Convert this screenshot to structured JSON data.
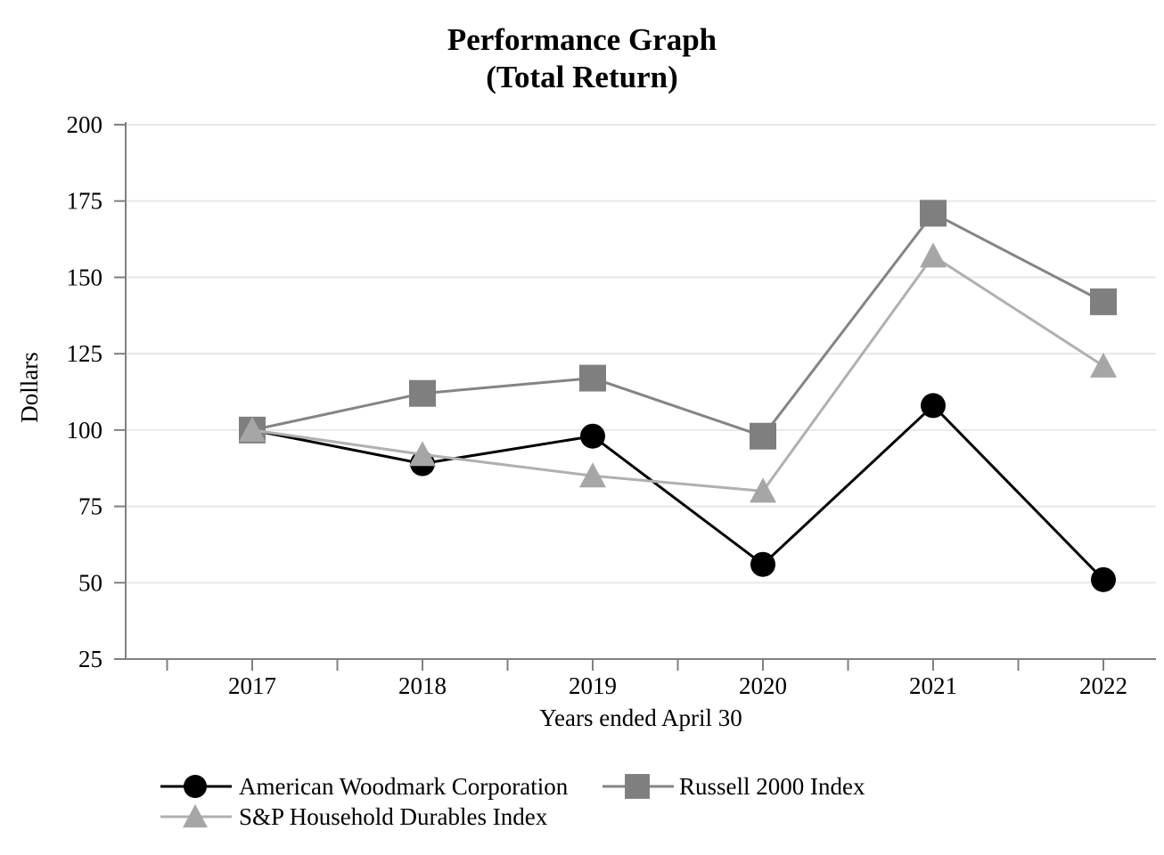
{
  "title": {
    "line1": "Performance Graph",
    "line2": "(Total Return)"
  },
  "chart_data": {
    "type": "line",
    "categories": [
      "2017",
      "2018",
      "2019",
      "2020",
      "2021",
      "2022"
    ],
    "series": [
      {
        "name": "American Woodmark Corporation",
        "marker": "circle",
        "marker_color": "#000000",
        "line_color": "#000000",
        "values": [
          100,
          89,
          98,
          56,
          108,
          51
        ]
      },
      {
        "name": "Russell 2000 Index",
        "marker": "square",
        "marker_color": "#7f7f7f",
        "line_color": "#848484",
        "values": [
          100,
          112,
          117,
          98,
          171,
          142
        ]
      },
      {
        "name": "S&P Household Durables Index",
        "marker": "triangle",
        "marker_color": "#a6a6a6",
        "line_color": "#b0b0b0",
        "values": [
          100,
          92,
          85,
          80,
          157,
          121
        ]
      }
    ],
    "xlabel": "Years ended April 30",
    "ylabel": "Dollars",
    "ylim": [
      25,
      200
    ],
    "yticks": [
      25,
      50,
      75,
      100,
      125,
      150,
      175,
      200
    ],
    "grid": true,
    "legend_position": "bottom",
    "colors": {
      "gridline": "#e8e8e8",
      "axis": "#808080",
      "text": "#000000",
      "background": "#ffffff"
    }
  }
}
